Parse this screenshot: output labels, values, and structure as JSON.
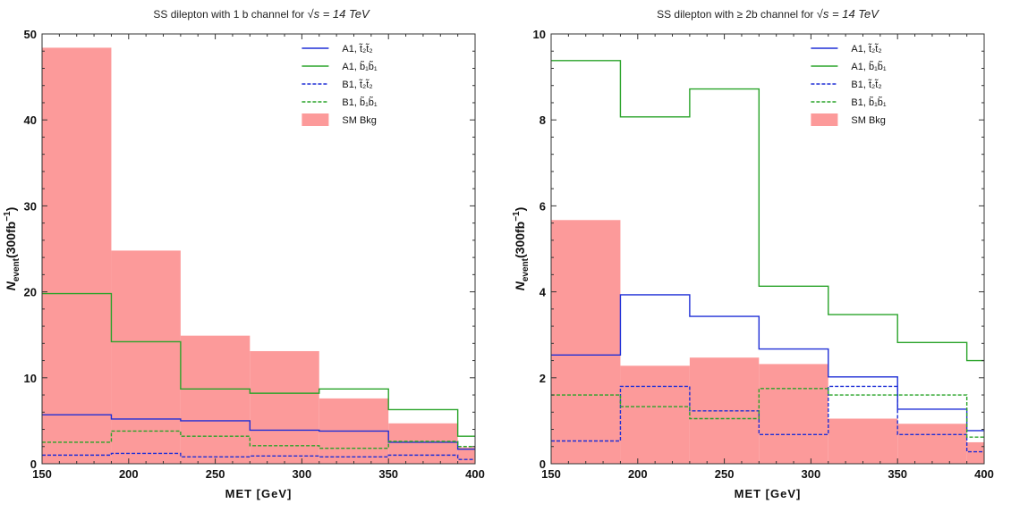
{
  "chart_data": [
    {
      "type": "histogram",
      "title": "SS dilepton with 1 b channel for",
      "title_math": "√s = 14 TeV",
      "xlabel": "MET [GeV]",
      "ylabel": "N_event(300fb^-1)",
      "ylabel_main": "N",
      "ylabel_sub": "event",
      "ylabel_rest": "(300fb",
      "ylabel_sup": "−1",
      "ylabel_close": ")",
      "xlim": [
        150,
        400
      ],
      "ylim": [
        0,
        50
      ],
      "xticks": [
        "150",
        "200",
        "250",
        "300",
        "350",
        "400"
      ],
      "yticks": [
        "0",
        "10",
        "20",
        "30",
        "40",
        "50"
      ],
      "bin_edges": [
        150,
        190,
        230,
        270,
        310,
        350,
        390,
        400
      ],
      "background": {
        "name": "SM Bkg",
        "color": "#fc9a9a",
        "values": [
          48.4,
          24.8,
          14.9,
          13.1,
          7.6,
          4.7,
          1.9
        ]
      },
      "series": [
        {
          "name": "A1, t̃₂t̃₂",
          "color": "#1f2fd6",
          "style": "solid",
          "values": [
            5.7,
            5.2,
            5.0,
            3.9,
            3.8,
            2.5,
            1.7
          ]
        },
        {
          "name": "A1, b̃₁b̃₁",
          "color": "#29a329",
          "style": "solid",
          "values": [
            19.8,
            14.2,
            8.7,
            8.2,
            8.7,
            6.3,
            3.2
          ]
        },
        {
          "name": "B1, t̃₂t̃₂",
          "color": "#1f2fd6",
          "style": "dashed",
          "values": [
            1.0,
            1.2,
            0.8,
            0.9,
            0.8,
            1.0,
            0.5
          ]
        },
        {
          "name": "B1, b̃₁b̃₁",
          "color": "#29a329",
          "style": "dashed",
          "values": [
            2.5,
            3.8,
            3.2,
            2.1,
            1.8,
            2.6,
            2.0
          ]
        }
      ],
      "legend_position": "top-right"
    },
    {
      "type": "histogram",
      "title": "SS dilepton with ≥ 2b channel for",
      "title_math": "√s = 14 TeV",
      "xlabel": "MET [GeV]",
      "ylabel": "N_event(300fb^-1)",
      "ylabel_main": "N",
      "ylabel_sub": "event",
      "ylabel_rest": "(300fb",
      "ylabel_sup": "−1",
      "ylabel_close": ")",
      "xlim": [
        150,
        400
      ],
      "ylim": [
        0,
        10
      ],
      "xticks": [
        "150",
        "200",
        "250",
        "300",
        "350",
        "400"
      ],
      "yticks": [
        "0",
        "2",
        "4",
        "6",
        "8",
        "10"
      ],
      "bin_edges": [
        150,
        190,
        230,
        270,
        310,
        350,
        390,
        400
      ],
      "background": {
        "name": "SM Bkg",
        "color": "#fc9a9a",
        "values": [
          5.67,
          2.28,
          2.47,
          2.32,
          1.05,
          0.93,
          0.5
        ]
      },
      "series": [
        {
          "name": "A1, t̃₂t̃₂",
          "color": "#1f2fd6",
          "style": "solid",
          "values": [
            2.53,
            3.93,
            3.43,
            2.67,
            2.02,
            1.27,
            0.77
          ]
        },
        {
          "name": "A1, b̃₁b̃₁",
          "color": "#29a329",
          "style": "solid",
          "values": [
            9.38,
            8.07,
            8.72,
            4.13,
            3.47,
            2.82,
            2.4
          ]
        },
        {
          "name": "B1, t̃₂t̃₂",
          "color": "#1f2fd6",
          "style": "dashed",
          "values": [
            0.53,
            1.8,
            1.23,
            0.68,
            1.8,
            0.68,
            0.28
          ]
        },
        {
          "name": "B1, b̃₁b̃₁",
          "color": "#29a329",
          "style": "dashed",
          "values": [
            1.6,
            1.33,
            1.05,
            1.75,
            1.6,
            1.6,
            0.62
          ]
        }
      ],
      "legend_position": "top-right"
    }
  ]
}
